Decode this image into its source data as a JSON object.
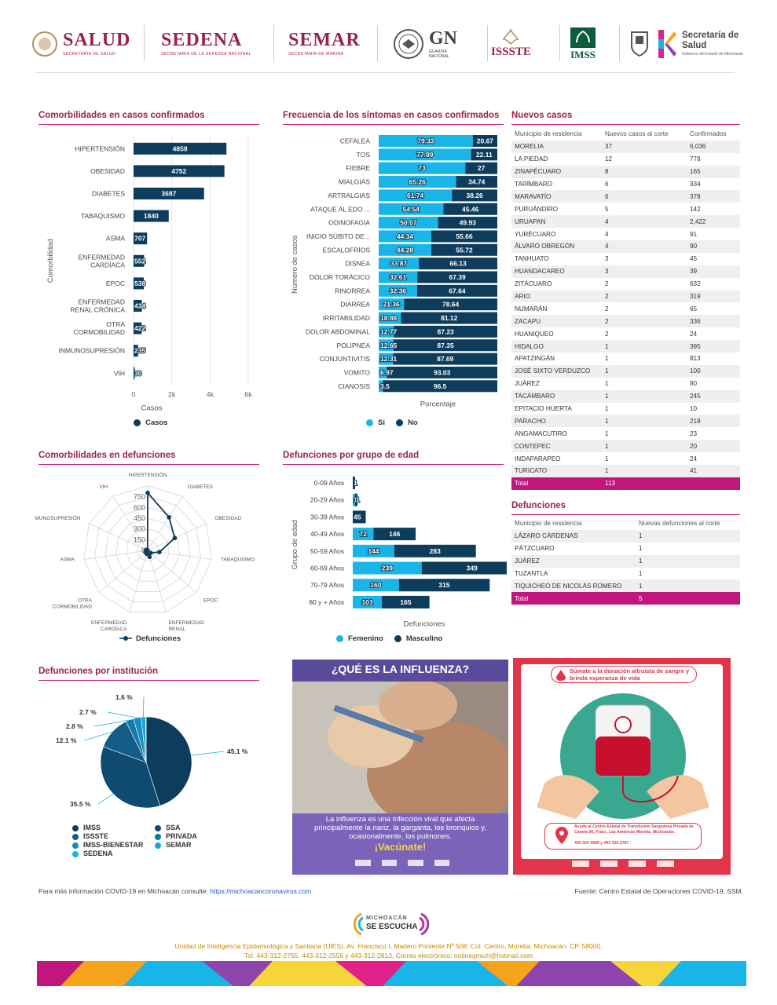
{
  "header": {
    "logos": [
      {
        "main": "SALUD",
        "sub": "SECRETARÍA DE SALUD"
      },
      {
        "main": "SEDENA",
        "sub": "SECRETARÍA DE LA DEFENSA NACIONAL"
      },
      {
        "main": "SEMAR",
        "sub": "SECRETARÍA DE MARINA"
      },
      {
        "main": "GN",
        "sub": "GUARDIA NACIONAL"
      },
      {
        "main": "ISSSTE",
        "sub": ""
      },
      {
        "main": "IMSS",
        "sub": ""
      },
      {
        "main": "Secretaría de Salud",
        "sub": "Gobierno del Estado de Michoacán"
      }
    ]
  },
  "colors": {
    "dark": "#0d3c5c",
    "light": "#19b5e8",
    "magenta": "#c2167f",
    "title": "#9b2247"
  },
  "comorbidity": {
    "title": "Comorbilidades en casos confirmados",
    "legend": "Casos"
  },
  "symptoms": {
    "title": "Frecuencia de los síntomas en casos confirmados",
    "legend_si": "Si",
    "legend_no": "No"
  },
  "deaths_comorbidity": {
    "title": "Comorbilidades en defunciones",
    "legend": "Defunciones"
  },
  "deaths_age": {
    "title": "Defunciones por grupo de edad",
    "legend_f": "Femenino",
    "legend_m": "Masculino"
  },
  "deaths_institution": {
    "title": "Defunciones por institución"
  },
  "chart_data": [
    {
      "type": "bar",
      "orientation": "horizontal",
      "categories": [
        "HIPERTENSIÓN",
        "OBESIDAD",
        "DIABETES",
        "TABAQUISMO",
        "ASMA",
        "ENFERMEDAD CARDÍACA",
        "EPOC",
        "ENFERMEDAD RENAL CRÓNICA",
        "OTRA CORMOBILIDAD",
        "INMUNOSUPRESIÓN",
        "VIH"
      ],
      "values": [
        4858,
        4752,
        3687,
        1840,
        707,
        552,
        538,
        434,
        422,
        235,
        30
      ],
      "xlabel": "Casos",
      "ylabel": "Comorbilidad",
      "xticks": [
        "0",
        "2k",
        "4k",
        "6k"
      ],
      "xlim": [
        0,
        6000
      ],
      "series_name": "Casos",
      "grid": true
    },
    {
      "type": "bar",
      "orientation": "horizontal",
      "stacked": true,
      "categories": [
        "CEFALEA",
        "TOS",
        "FIEBRE",
        "MIALGIAS",
        "ARTRALGIAS",
        "ATAQUE AL EDO ...",
        "ODINOFAGIA",
        "INICIO SÚBITO DE...",
        "ESCALOFRÍOS",
        "DISNEA",
        "DOLOR TORÁCICO",
        "RINORREA",
        "DIARREA",
        "IRRITABILIDAD",
        "DOLOR ABDOMINAL",
        "POLIPNEA",
        "CONJUNTIVITIS",
        "VOMITO",
        "CIANOSIS"
      ],
      "series": [
        {
          "name": "Si",
          "values": [
            79.33,
            77.89,
            73,
            65.26,
            61.74,
            54.54,
            50.07,
            44.34,
            44.28,
            33.87,
            32.61,
            32.36,
            21.36,
            18.88,
            12.77,
            12.65,
            12.31,
            6.97,
            3.5
          ]
        },
        {
          "name": "No",
          "values": [
            20.67,
            22.11,
            27,
            34.74,
            38.26,
            45.46,
            49.93,
            55.66,
            55.72,
            66.13,
            67.39,
            67.64,
            78.64,
            81.12,
            87.23,
            87.35,
            87.69,
            93.03,
            96.5
          ]
        }
      ],
      "xlabel": "Porcentaje",
      "ylabel": "Número de casos",
      "xlim": [
        0,
        100
      ]
    },
    {
      "type": "radar",
      "categories": [
        "HIPERTENSIÓN",
        "DIABETES",
        "OBESIDAD",
        "TABAQUISMO",
        "EPOC",
        "ENFERMEDAD RENAL CRÓNICA",
        "ENFERMEDAD CARDÍACA",
        "OTRA CORMOBILIDAD",
        "ASMA",
        "INMUNOSUPRESIÓN",
        "VIH"
      ],
      "values": [
        805,
        550,
        415,
        165,
        55,
        95,
        50,
        40,
        30,
        20,
        5
      ],
      "rticks": [
        "0",
        "150",
        "300",
        "450",
        "600",
        "750"
      ],
      "rlim": [
        0,
        900
      ],
      "series_name": "Defunciones"
    },
    {
      "type": "bar",
      "orientation": "horizontal",
      "stacked": true,
      "categories": [
        "0-09 Años",
        "20-29 Años",
        "30-39 Años",
        "40-49 Años",
        "50-59 Años",
        "60-69 Años",
        "70-79 Años",
        "80 y + Años"
      ],
      "series": [
        {
          "name": "Femenino",
          "values": [
            0,
            1,
            0,
            72,
            144,
            239,
            160,
            101
          ],
          "labels": [
            "",
            "1",
            "",
            "72",
            "144",
            "239",
            "160",
            "101"
          ]
        },
        {
          "name": "Masculino",
          "values": [
            1,
            1,
            45,
            146,
            283,
            349,
            315,
            165
          ],
          "labels": [
            "1",
            "1",
            "45",
            "146",
            "283",
            "349",
            "315",
            "165"
          ]
        }
      ],
      "xlabel": "Defunciones",
      "ylabel": "Grupo de edad"
    },
    {
      "type": "pie",
      "labels": [
        "IMSS",
        "SSA",
        "ISSSTE",
        "PRIVADA",
        "IMSS-BIENESTAR",
        "SEMAR",
        "SEDENA"
      ],
      "values": [
        45.1,
        35.5,
        12.1,
        2.8,
        2.7,
        1.6,
        0.2
      ],
      "value_labels": [
        "45.1 %",
        "35.5 %",
        "12.1 %",
        "2.8 %",
        "2.7 %",
        "1.6 %",
        ""
      ],
      "colors": [
        "#0d3c5c",
        "#0f4a70",
        "#135c88",
        "#1578a8",
        "#168dc0",
        "#19a6d8",
        "#1ab8ea"
      ]
    }
  ],
  "new_cases": {
    "title": "Nuevos casos",
    "headers": [
      "Municipio de residencia",
      "Nuevos casos al corte",
      "Confirmados"
    ],
    "rows": [
      [
        "MORELIA",
        "37",
        "6,036"
      ],
      [
        "LA PIEDAD",
        "12",
        "778"
      ],
      [
        "ZINAPÉCUARO",
        "8",
        "165"
      ],
      [
        "TARÍMBARO",
        "6",
        "334"
      ],
      [
        "MARAVATÍO",
        "6",
        "378"
      ],
      [
        "PURUÁNDIRO",
        "5",
        "142"
      ],
      [
        "URUAPAN",
        "4",
        "2,422"
      ],
      [
        "YURÉCUARO",
        "4",
        "91"
      ],
      [
        "ÁLVARO OBREGÓN",
        "4",
        "90"
      ],
      [
        "TANHUATO",
        "3",
        "45"
      ],
      [
        "HUANDACAREO",
        "3",
        "39"
      ],
      [
        "ZITÁCUARO",
        "2",
        "632"
      ],
      [
        "ARIO",
        "2",
        "319"
      ],
      [
        "NUMARÁN",
        "2",
        "65"
      ],
      [
        "ZACAPU",
        "2",
        "336"
      ],
      [
        "HUANIQUEO",
        "2",
        "24"
      ],
      [
        "HIDALGO",
        "1",
        "395"
      ],
      [
        "APATZINGÁN",
        "1",
        "813"
      ],
      [
        "JOSÉ SIXTO VERDUZCO",
        "1",
        "100"
      ],
      [
        "JUÁREZ",
        "1",
        "80"
      ],
      [
        "TACÁMBARO",
        "1",
        "245"
      ],
      [
        "EPITACIO HUERTA",
        "1",
        "10"
      ],
      [
        "PARACHO",
        "1",
        "218"
      ],
      [
        "ANGAMACUTIRO",
        "1",
        "23"
      ],
      [
        "CONTEPEC",
        "1",
        "20"
      ],
      [
        "INDAPARAPEO",
        "1",
        "24"
      ],
      [
        "TURICATO",
        "1",
        "41"
      ]
    ],
    "total": [
      "Total",
      "113",
      ""
    ]
  },
  "deaths_table": {
    "title": "Defunciones",
    "headers": [
      "Municipio de residencia",
      "Nuevas defunciones al corte"
    ],
    "rows": [
      [
        "LÁZARO CÁRDENAS",
        "1"
      ],
      [
        "PÁTZCUARO",
        "1"
      ],
      [
        "JUÁREZ",
        "1"
      ],
      [
        "TUZANTLA",
        "1"
      ],
      [
        "TIQUICHEO DE NICOLÁS ROMERO",
        "1"
      ]
    ],
    "total": [
      "Total",
      "5"
    ]
  },
  "poster_influenza": {
    "heading": "¿QUÉ ES LA INFLUENZA?",
    "body": "La influenza es una infección viral que afecta principalmente la nariz, la garganta, los bronquios y, ocasionalmente, los pulmones.",
    "cta": "¡Vacúnate!"
  },
  "poster_blood": {
    "heading": "Súmate a la donación altruista de sangre y brinda esperanza de vida",
    "address": "Acude al Centro Estatal de Transfusión Sanguínea Privada de Canela 90, Fracc. Las Américas Morelia, Michoacán.",
    "phones": "443 324 3999 y 443 324 2787"
  },
  "footer": {
    "info_prefix": "Para más información COVID-19 en Michoacán consulte:",
    "info_link": "https://michoacancoronavirus.com",
    "source": "Fuente: Centro Estatal de Operaciones COVID-19, SSM.",
    "brand_top": "MICHOACÁN",
    "brand_bottom": "SE ESCUCHA",
    "address": "Unidad de Inteligencia Epidemiológica y Sanitaria (UIES). Av. Francisco I. Madero Poniente Nº 508, Col. Centro, Morelia, Michoacán. CP. 58000.",
    "contact": "Tel. 443-312-2755, 443-312-2556 y 443-312-2813, Correo electrónico: notinegmich@hotmail.com"
  }
}
